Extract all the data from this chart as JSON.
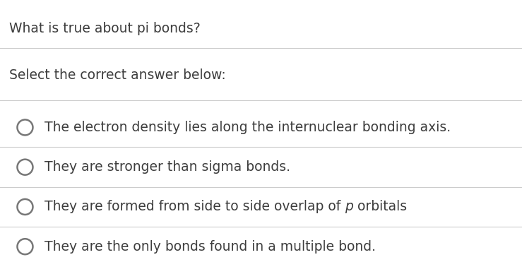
{
  "title": "What is true about pi bonds?",
  "subtitle": "Select the correct answer below:",
  "options": [
    "The electron density lies along the internuclear bonding axis.",
    "They are stronger than sigma bonds.",
    "They are formed from side to side overlap of  p  orbitals",
    "They are the only bonds found in a multiple bond."
  ],
  "option_3_parts": [
    "They are formed from side to side overlap of ",
    "p",
    " orbitals"
  ],
  "background_color": "#ffffff",
  "text_color": "#3d3d3d",
  "title_color": "#3d3d3d",
  "subtitle_color": "#3d3d3d",
  "line_color": "#cccccc",
  "circle_edge_color": "#777777",
  "title_fontsize": 13.5,
  "subtitle_fontsize": 13.5,
  "option_fontsize": 13.5,
  "figsize": [
    7.39,
    3.88
  ],
  "dpi": 100
}
